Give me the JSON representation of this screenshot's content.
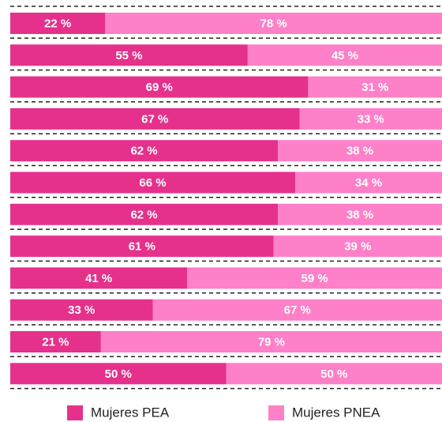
{
  "chart_data": {
    "type": "stacked_bar_horizontal",
    "categories": [
      null,
      null,
      null,
      null,
      null,
      null,
      null,
      null,
      null,
      null,
      null,
      null
    ],
    "xlim": [
      0,
      100
    ],
    "legend": "bottom",
    "series": [
      {
        "name": "Mujeres PEA",
        "color": "#e5318b",
        "values": [
          22,
          55,
          69,
          67,
          62,
          66,
          62,
          61,
          41,
          33,
          21,
          50
        ],
        "value_labels": [
          "22 %",
          "55 %",
          "69 %",
          "67 %",
          "62 %",
          "66 %",
          "62 %",
          "61 %",
          "41 %",
          "33 %",
          "21 %",
          "50 %"
        ]
      },
      {
        "name": "Mujeres PNEA",
        "color": "#fd80c8",
        "values": [
          78,
          45,
          31,
          33,
          38,
          34,
          38,
          39,
          59,
          67,
          79,
          50
        ],
        "value_labels": [
          "78 %",
          "45 %",
          "31 %",
          "33 %",
          "38 %",
          "34 %",
          "38 %",
          "39 %",
          "59 %",
          "67 %",
          "79 %",
          "50 %"
        ]
      }
    ]
  }
}
